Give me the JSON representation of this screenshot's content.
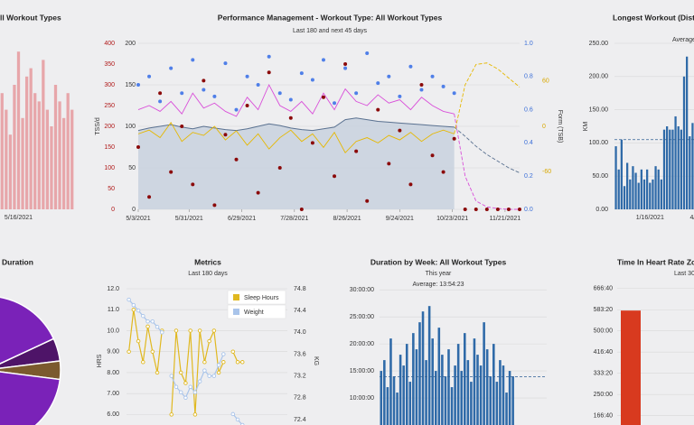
{
  "chart_data": [
    {
      "type": "bar",
      "title": "ll Workout Types",
      "color": "#e7a6aa",
      "ylim": [
        0,
        100
      ],
      "categories": [
        null,
        null,
        null,
        null,
        "5/16/2021",
        null,
        null,
        null,
        null,
        null,
        null,
        null,
        null,
        null,
        null,
        null,
        null,
        null
      ],
      "values": [
        70,
        60,
        45,
        75,
        95,
        55,
        80,
        85,
        70,
        65,
        90,
        60,
        50,
        75,
        65,
        55,
        70,
        60
      ]
    },
    {
      "type": "combo",
      "title": "Performance Management - Workout Type: All Workout Types",
      "subtitle": "Last 180 and next 45 days",
      "ylabel": "TSS/d",
      "y4label": "Form (TSB)",
      "ylim": [
        0,
        400
      ],
      "yticks": [
        0,
        50,
        100,
        150,
        200,
        250,
        300,
        350,
        400
      ],
      "ycolor": "#b01818",
      "y2lim": [
        0,
        200
      ],
      "y2ticks": [
        0,
        50,
        100,
        150,
        200
      ],
      "grid": true,
      "y3lim": [
        0,
        1
      ],
      "y3ticks": [
        {
          "value": 0,
          "label": "0.0"
        },
        0.2,
        0.4,
        0.6,
        0.8,
        {
          "value": 1,
          "label": "1.0"
        }
      ],
      "y3color": "#3b6fd8",
      "y4lim": [
        -110,
        110
      ],
      "y4ticks": [
        60,
        0,
        -60
      ],
      "y4color": "#d9a800",
      "xlim": [
        "5/3/2021",
        "11/29/2021"
      ],
      "xticks": [
        "5/3/2021",
        "5/31/2021",
        "6/29/2021",
        "7/28/2021",
        "8/26/2021",
        "9/24/2021",
        "10/23/2021",
        "11/21/2021"
      ],
      "x": [
        "5/3/2021",
        "5/9/2021",
        "5/15/2021",
        "5/21/2021",
        "5/27/2021",
        "6/2/2021",
        "6/8/2021",
        "6/14/2021",
        "6/20/2021",
        "6/26/2021",
        "7/2/2021",
        "7/8/2021",
        "7/14/2021",
        "7/20/2021",
        "7/26/2021",
        "8/1/2021",
        "8/7/2021",
        "8/13/2021",
        "8/19/2021",
        "8/25/2021",
        "8/31/2021",
        "9/6/2021",
        "9/12/2021",
        "9/18/2021",
        "9/24/2021",
        "9/30/2021",
        "10/6/2021",
        "10/12/2021",
        "10/18/2021",
        "10/24/2021",
        "10/30/2021",
        "11/5/2021",
        "11/11/2021",
        "11/17/2021",
        "11/23/2021",
        "11/29/2021"
      ],
      "series": [
        {
          "kind": "area",
          "axis": "y2",
          "color": "#5a7190",
          "fill": "#c5cfdd",
          "dashed": false,
          "values": [
            95,
            98,
            100,
            102,
            99,
            97,
            100,
            98,
            96,
            95,
            97,
            100,
            103,
            101,
            98,
            96,
            95,
            97,
            99,
            108,
            110,
            108,
            106,
            105,
            104,
            103,
            102,
            101,
            100,
            99,
            null,
            null,
            null,
            null,
            null,
            null
          ]
        },
        {
          "kind": "line",
          "axis": "y2",
          "color": "#5a7190",
          "dashed": true,
          "values": [
            null,
            null,
            null,
            null,
            null,
            null,
            null,
            null,
            null,
            null,
            null,
            null,
            null,
            null,
            null,
            null,
            null,
            null,
            null,
            null,
            null,
            null,
            null,
            null,
            null,
            null,
            null,
            null,
            null,
            99,
            88,
            76,
            66,
            58,
            50,
            44
          ]
        },
        {
          "kind": "line",
          "axis": "y2",
          "color": "#d94fd9",
          "dashed": false,
          "values": [
            120,
            125,
            118,
            130,
            115,
            140,
            122,
            128,
            118,
            112,
            135,
            120,
            150,
            125,
            118,
            130,
            115,
            140,
            120,
            145,
            130,
            125,
            138,
            128,
            132,
            120,
            135,
            125,
            118,
            115,
            null,
            null,
            null,
            null,
            null,
            null
          ]
        },
        {
          "kind": "line",
          "axis": "y2",
          "color": "#d94fd9",
          "dashed": true,
          "values": [
            null,
            null,
            null,
            null,
            null,
            null,
            null,
            null,
            null,
            null,
            null,
            null,
            null,
            null,
            null,
            null,
            null,
            null,
            null,
            null,
            null,
            null,
            null,
            null,
            null,
            null,
            null,
            null,
            null,
            115,
            40,
            10,
            3,
            1,
            0,
            0
          ]
        },
        {
          "kind": "line",
          "axis": "y4",
          "color": "#e6b800",
          "dashed": false,
          "values": [
            -10,
            -5,
            -15,
            5,
            -20,
            -8,
            -12,
            0,
            -18,
            -6,
            -25,
            -10,
            -30,
            -15,
            -5,
            -20,
            -10,
            -28,
            -8,
            -35,
            -20,
            -15,
            -22,
            -12,
            -18,
            -8,
            -20,
            -10,
            -5,
            -10,
            null,
            null,
            null,
            null,
            null,
            null
          ]
        },
        {
          "kind": "line",
          "axis": "y4",
          "color": "#e6b800",
          "dashed": true,
          "values": [
            null,
            null,
            null,
            null,
            null,
            null,
            null,
            null,
            null,
            null,
            null,
            null,
            null,
            null,
            null,
            null,
            null,
            null,
            null,
            null,
            null,
            null,
            null,
            null,
            null,
            null,
            null,
            null,
            null,
            -10,
            55,
            82,
            84,
            76,
            64,
            52
          ]
        },
        {
          "kind": "scatter",
          "axis": "y",
          "color": "#8b0a0a",
          "dashed": false,
          "values": [
            150,
            30,
            280,
            90,
            200,
            60,
            310,
            10,
            180,
            120,
            250,
            40,
            330,
            100,
            220,
            0,
            160,
            270,
            80,
            350,
            140,
            20,
            240,
            110,
            190,
            60,
            300,
            130,
            90,
            170,
            0,
            0,
            0,
            0,
            0,
            0
          ]
        },
        {
          "kind": "scatter",
          "axis": "y3",
          "color": "#4f7fe8",
          "dashed": false,
          "values": [
            0.75,
            0.8,
            0.65,
            0.85,
            0.7,
            0.9,
            0.72,
            0.68,
            0.88,
            0.6,
            0.8,
            0.75,
            0.92,
            0.7,
            0.66,
            0.82,
            0.78,
            0.9,
            0.64,
            0.85,
            0.7,
            0.94,
            0.76,
            0.8,
            0.68,
            0.86,
            0.72,
            0.8,
            0.74,
            0.7,
            null,
            null,
            null,
            null,
            null,
            null
          ]
        }
      ]
    },
    {
      "type": "bar",
      "title": "Longest Workout (Dista",
      "subtitle": "Average",
      "ylabel": "KM",
      "color": "#2f6aa8",
      "grid": true,
      "ylim": [
        0,
        250
      ],
      "yticks": [
        {
          "value": 0,
          "label": "0.00"
        },
        {
          "value": 50,
          "label": "50.00"
        },
        {
          "value": 100,
          "label": "100.00"
        },
        {
          "value": 150,
          "label": "150.00"
        },
        {
          "value": 200,
          "label": "200.00"
        },
        {
          "value": 250,
          "label": "250.00"
        }
      ],
      "average": 105,
      "categories": [
        null,
        null,
        null,
        null,
        null,
        null,
        null,
        null,
        null,
        null,
        null,
        null,
        "1/16/2021",
        null,
        null,
        null,
        null,
        null,
        null,
        null,
        null,
        null,
        null,
        null,
        null,
        null,
        null,
        "4/"
      ],
      "values": [
        95,
        60,
        105,
        35,
        70,
        45,
        65,
        55,
        40,
        60,
        45,
        60,
        40,
        45,
        65,
        60,
        45,
        120,
        125,
        120,
        120,
        140,
        125,
        120,
        200,
        230,
        110,
        130
      ]
    },
    {
      "type": "pie",
      "title": "Duration",
      "values": [
        5,
        4,
        91
      ],
      "colors": [
        "#4e1468",
        "#7b5a2e",
        "#7a22b8"
      ]
    },
    {
      "type": "line",
      "title": "Metrics",
      "subtitle": "Last 180 days",
      "ylabel": "HRS",
      "y2label": "KG",
      "grid": true,
      "ylim": [
        5.5,
        12
      ],
      "yticks": [
        {
          "value": 12,
          "label": "12.0"
        },
        {
          "value": 11,
          "label": "11.0"
        },
        {
          "value": 10,
          "label": "10.0"
        },
        {
          "value": 9,
          "label": "9.00"
        },
        {
          "value": 8,
          "label": "8.00"
        },
        {
          "value": 7,
          "label": "7.00"
        },
        {
          "value": 6,
          "label": "6.00"
        }
      ],
      "y2lim": [
        72.3,
        74.8
      ],
      "y2ticks": [
        74.8,
        74.4,
        {
          "value": 74,
          "label": "74.0"
        },
        73.6,
        73.2,
        72.8,
        72.4
      ],
      "categories": [
        null,
        null,
        null,
        null,
        null,
        null,
        null,
        null,
        null,
        null,
        null,
        null,
        null,
        null,
        null,
        null,
        null,
        null,
        null,
        null,
        null,
        null,
        null,
        null,
        null,
        null,
        null,
        null,
        null,
        null,
        null,
        null,
        null,
        null
      ],
      "series": [
        {
          "name": "Sleep Hours",
          "axis": "y",
          "color": "#e0b820",
          "values": [
            9,
            11,
            9.5,
            8.5,
            10.2,
            9,
            8,
            10,
            null,
            6,
            10,
            8,
            7.5,
            10,
            6,
            10,
            8.5,
            9.5,
            10,
            8,
            8.5,
            null,
            9,
            8.5,
            8.5,
            null,
            null,
            null,
            null,
            null,
            null,
            null,
            null,
            null
          ]
        },
        {
          "name": "Weight",
          "axis": "y2",
          "color": "#a9c4ea",
          "values": [
            74.6,
            74.5,
            74.4,
            74.3,
            74.2,
            74.2,
            74.1,
            74,
            null,
            73.2,
            73,
            72.9,
            72.8,
            73,
            72.9,
            73.1,
            73.3,
            73.2,
            73.2,
            73.4,
            73.6,
            null,
            72.5,
            72.4,
            72.3,
            null,
            null,
            null,
            null,
            null,
            null,
            null,
            null,
            null
          ]
        }
      ]
    },
    {
      "type": "bar",
      "title": "Duration by Week: All Workout Types",
      "subtitle": "This year",
      "note": "Average: 13:54:23",
      "average": 13.9064,
      "color": "#2f6aa8",
      "grid": true,
      "ylim": [
        5,
        30.2
      ],
      "yticks": [
        {
          "value": 30,
          "label": "30:00:00"
        },
        {
          "value": 25,
          "label": "25:00:00"
        },
        {
          "value": 20,
          "label": "20:00:00"
        },
        {
          "value": 15,
          "label": "15:00:00"
        },
        {
          "value": 10,
          "label": "10:00:00"
        }
      ],
      "categories": [
        null,
        null,
        null,
        null,
        null,
        null,
        null,
        null,
        null,
        null,
        null,
        null,
        null,
        null,
        null,
        null,
        null,
        null,
        null,
        null,
        null,
        null,
        null,
        null,
        null,
        null,
        null,
        null,
        null,
        null,
        null,
        null,
        null,
        null,
        null,
        null,
        null,
        null,
        null,
        null,
        null,
        null,
        null,
        null,
        null,
        null,
        null,
        null,
        null,
        null,
        null,
        null
      ],
      "values": [
        15,
        17,
        12,
        21,
        14,
        11,
        18,
        16,
        20,
        13,
        22,
        19,
        24,
        26,
        17,
        27,
        21,
        15,
        23,
        18,
        14,
        19,
        12,
        16,
        20,
        15,
        22,
        17,
        13,
        21,
        18,
        16,
        24,
        19,
        14,
        20,
        13,
        17,
        16,
        11,
        15,
        14,
        null,
        null,
        null,
        null,
        null,
        null,
        null,
        null,
        null,
        null
      ]
    },
    {
      "type": "bar",
      "title": "Time In Heart Rate Zo",
      "subtitle": "Last 30",
      "color": "#d83a1f",
      "grid": true,
      "ylim": [
        130,
        680
      ],
      "yticks": [
        {
          "value": 666.667,
          "label": "666:40"
        },
        {
          "value": 583.333,
          "label": "583:20"
        },
        {
          "value": 500,
          "label": "500:00"
        },
        {
          "value": 416.667,
          "label": "416:40"
        },
        {
          "value": 333.333,
          "label": "333:20"
        },
        {
          "value": 250,
          "label": "250:00"
        },
        {
          "value": 166.667,
          "label": "166:40"
        }
      ],
      "categories": [
        null,
        null,
        null
      ],
      "values": [
        580,
        null,
        null
      ]
    }
  ]
}
